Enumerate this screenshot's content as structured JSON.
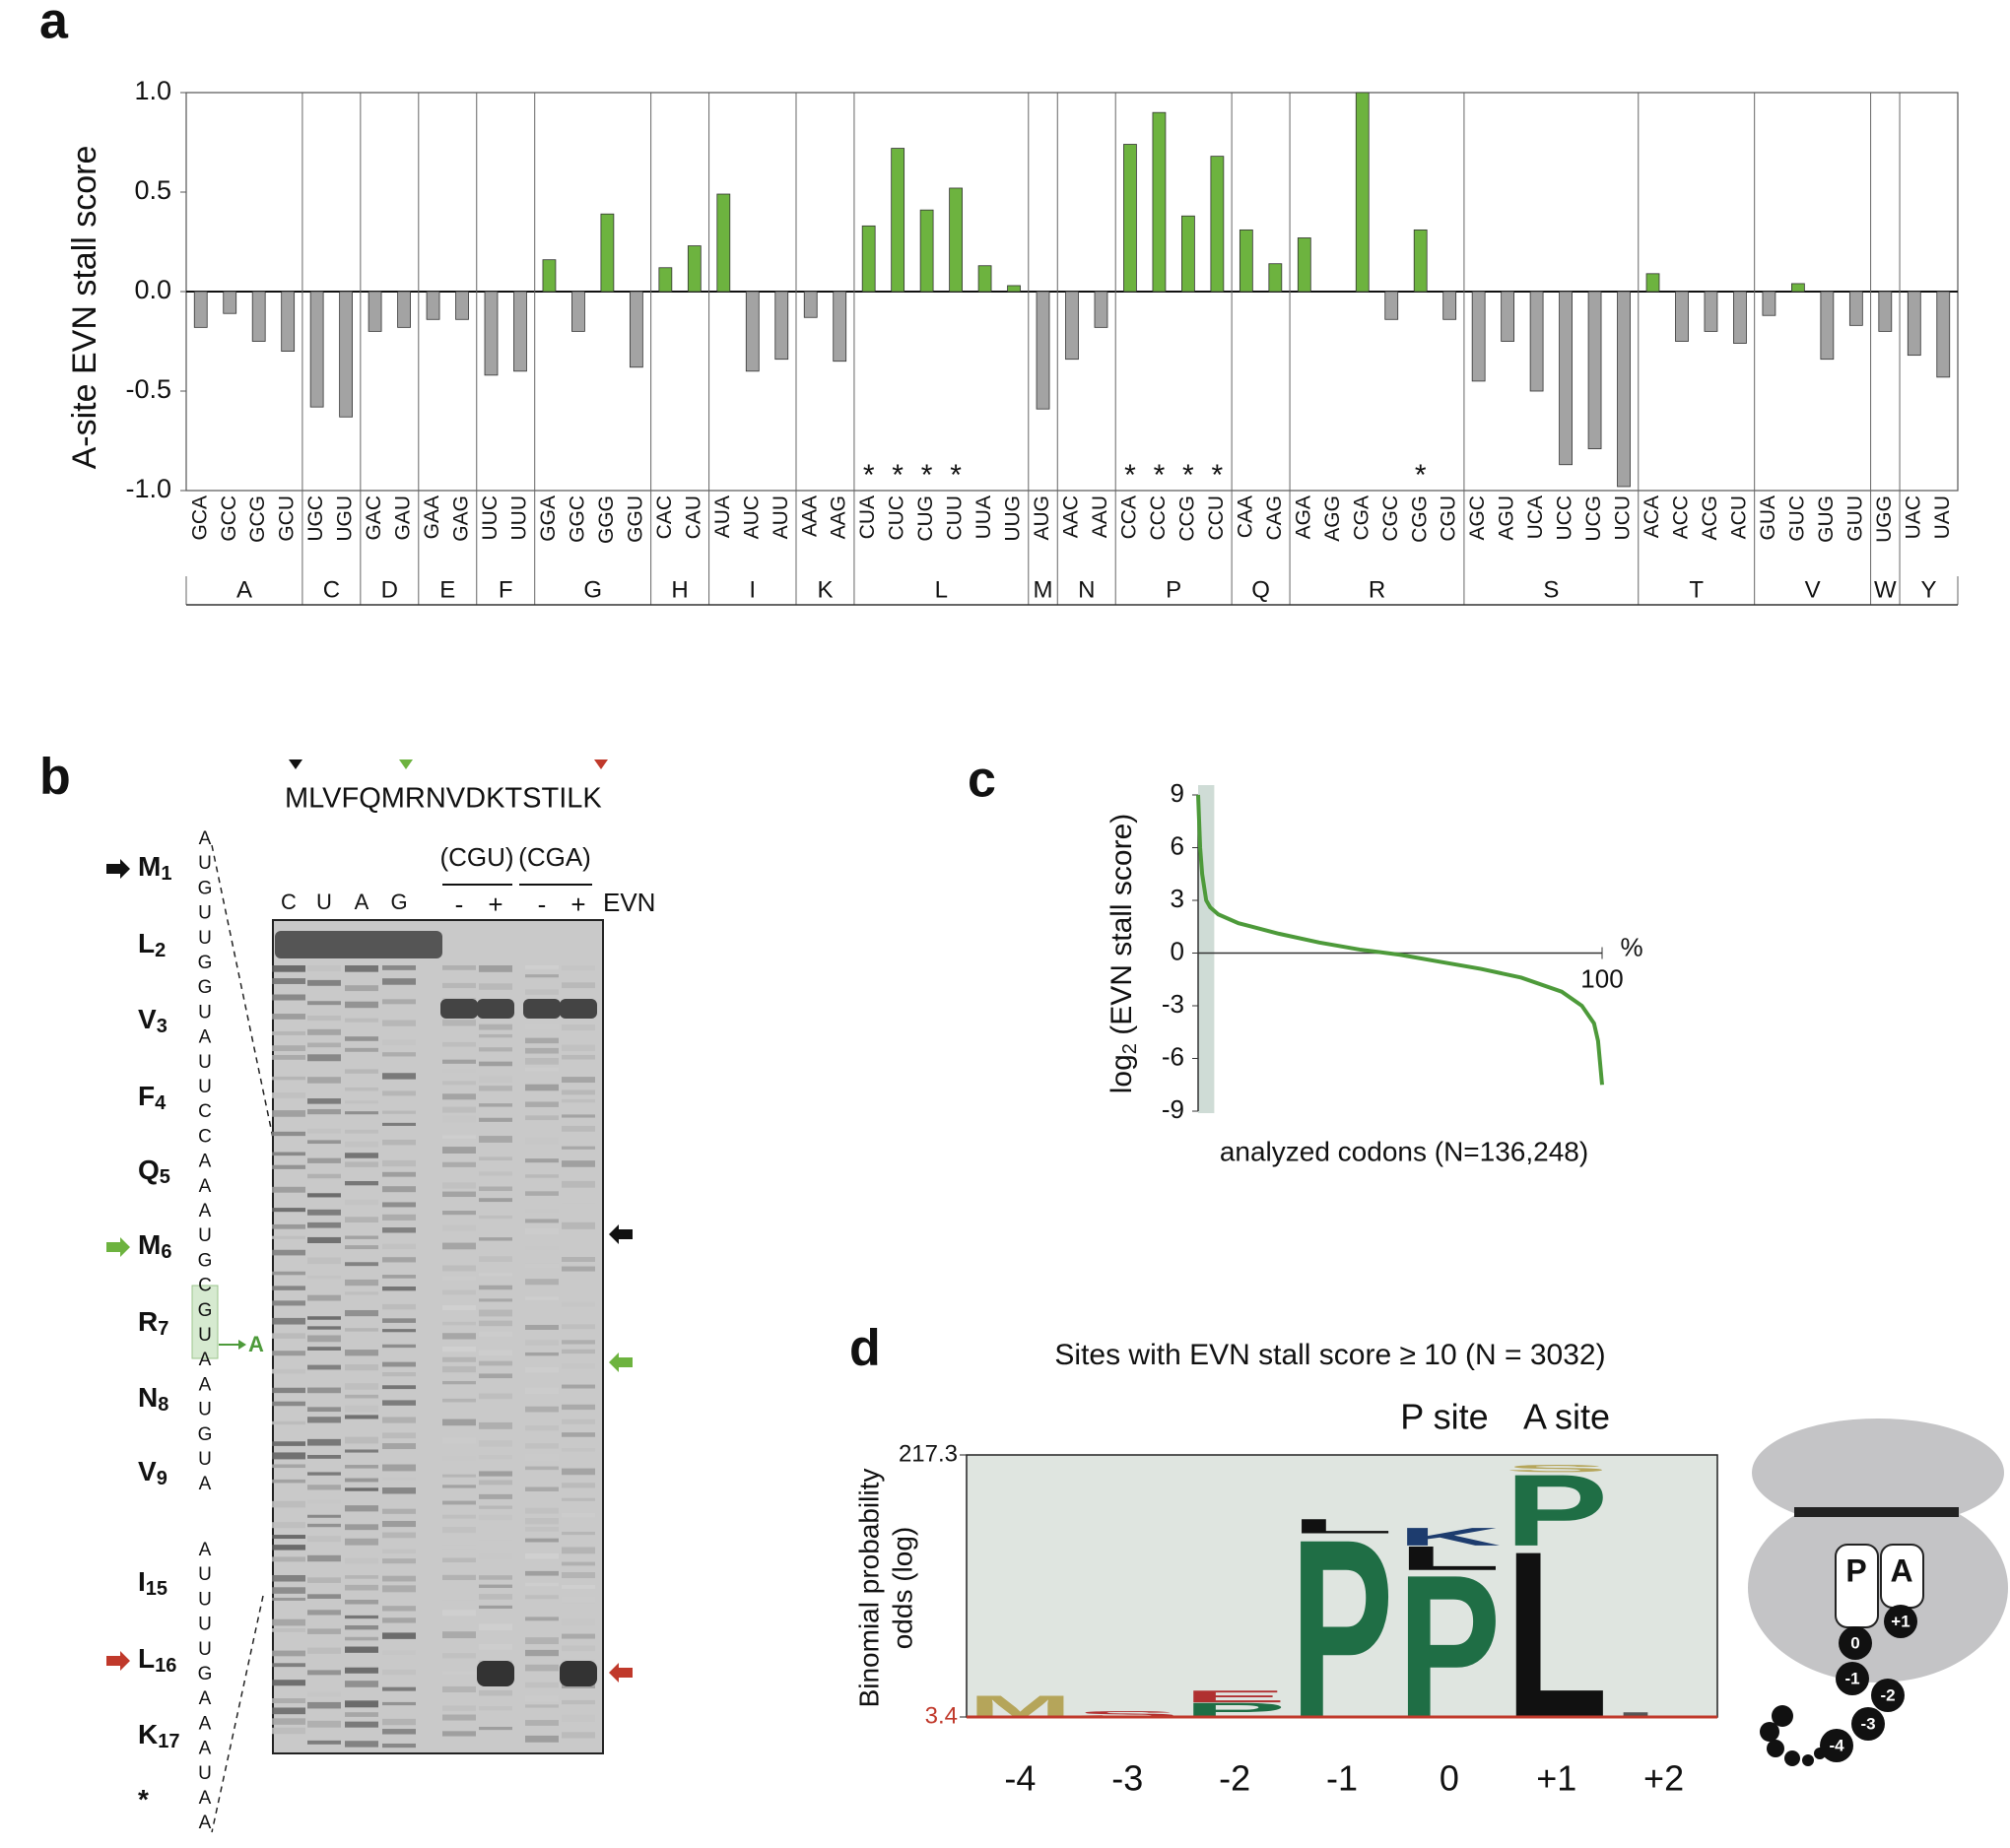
{
  "panel_labels": [
    "a",
    "b",
    "c",
    "d"
  ],
  "chart_data": [
    {
      "type": "bar",
      "ylabel": "A-site EVN stall score",
      "categories": [
        "GCA",
        "GCC",
        "GCG",
        "GCU",
        "UGC",
        "UGU",
        "GAC",
        "GAU",
        "GAA",
        "GAG",
        "UUC",
        "UUU",
        "GGA",
        "GGC",
        "GGG",
        "GGU",
        "CAC",
        "CAU",
        "AUA",
        "AUC",
        "AUU",
        "AAA",
        "AAG",
        "CUA",
        "CUC",
        "CUG",
        "CUU",
        "UUA",
        "UUG",
        "AUG",
        "AAC",
        "AAU",
        "CCA",
        "CCC",
        "CCG",
        "CCU",
        "CAA",
        "CAG",
        "AGA",
        "AGG",
        "CGA",
        "CGC",
        "CGG",
        "CGU",
        "AGC",
        "AGU",
        "UCA",
        "UCC",
        "UCG",
        "UCU",
        "ACA",
        "ACC",
        "ACG",
        "ACU",
        "GUA",
        "GUC",
        "GUG",
        "GUU",
        "UGG",
        "UAC",
        "UAU"
      ],
      "amino_acids": [
        "A",
        "A",
        "A",
        "A",
        "C",
        "C",
        "D",
        "D",
        "E",
        "E",
        "F",
        "F",
        "G",
        "G",
        "G",
        "G",
        "H",
        "H",
        "I",
        "I",
        "I",
        "K",
        "K",
        "L",
        "L",
        "L",
        "L",
        "L",
        "L",
        "M",
        "N",
        "N",
        "P",
        "P",
        "P",
        "P",
        "Q",
        "Q",
        "R",
        "R",
        "R",
        "R",
        "R",
        "R",
        "S",
        "S",
        "S",
        "S",
        "S",
        "S",
        "T",
        "T",
        "T",
        "T",
        "V",
        "V",
        "V",
        "V",
        "W",
        "Y",
        "Y"
      ],
      "values": [
        -0.18,
        -0.11,
        -0.25,
        -0.3,
        -0.58,
        -0.63,
        -0.2,
        -0.18,
        -0.14,
        -0.14,
        -0.42,
        -0.4,
        0.16,
        -0.2,
        0.39,
        -0.38,
        0.12,
        0.23,
        0.49,
        -0.4,
        -0.34,
        -0.13,
        -0.35,
        0.33,
        0.72,
        0.41,
        0.52,
        0.13,
        0.03,
        -0.59,
        -0.34,
        -0.18,
        0.74,
        0.9,
        0.38,
        0.68,
        0.31,
        0.14,
        0.27,
        0,
        1.0,
        -0.14,
        0.31,
        -0.14,
        -0.45,
        -0.25,
        -0.5,
        -0.87,
        -0.79,
        -0.98,
        0.09,
        -0.25,
        -0.2,
        -0.26,
        -0.12,
        0.04,
        -0.34,
        -0.17,
        -0.2,
        -0.32,
        -0.43
      ],
      "stars": [
        null,
        null,
        null,
        null,
        null,
        null,
        null,
        null,
        null,
        null,
        null,
        null,
        null,
        null,
        null,
        null,
        null,
        null,
        null,
        null,
        null,
        null,
        null,
        "*",
        "*",
        "*",
        "*",
        null,
        null,
        null,
        null,
        null,
        "*",
        "*",
        "*",
        "*",
        null,
        null,
        null,
        null,
        null,
        null,
        "*",
        null,
        null,
        null,
        null,
        null,
        null,
        null,
        null,
        null,
        null,
        null,
        null,
        null,
        null,
        null,
        null,
        null,
        null
      ],
      "positive_color": "#6db33f",
      "negative_color": "#a3a3a3",
      "ylim": [
        -1,
        1
      ],
      "yticks": [
        {
          "value": -1,
          "label": "-1.0"
        },
        {
          "value": -0.5,
          "label": "-0.5"
        },
        {
          "value": 0,
          "label": "0.0"
        },
        {
          "value": 0.5,
          "label": "0.5"
        },
        {
          "value": 1,
          "label": "1.0"
        }
      ]
    },
    {
      "type": "line",
      "ylabel": {
        "main": "log",
        "sub": "2",
        "rest": " (EVN stall score)"
      },
      "xlabel": "analyzed codons (N=136,248)",
      "xunit": "%",
      "x": [
        0,
        0.5,
        1,
        2,
        3,
        5,
        10,
        20,
        30,
        40,
        50,
        60,
        70,
        80,
        90,
        95,
        98,
        99,
        100
      ],
      "values": [
        9,
        6,
        4.5,
        3,
        2.6,
        2.2,
        1.7,
        1.1,
        0.6,
        0.2,
        -0.1,
        -0.5,
        -0.9,
        -1.4,
        -2.2,
        -3,
        -4,
        -5,
        -7.5
      ],
      "color": "#4d9a3a",
      "highlight_xlim": [
        0,
        4
      ],
      "highlight_color": "#cfdcd6",
      "xlim": [
        0,
        100
      ],
      "xticks": [
        100
      ],
      "ylim": [
        -9,
        9
      ],
      "yticks": [
        -9,
        -6,
        -3,
        0,
        3,
        6,
        9
      ]
    }
  ],
  "gel": {
    "peptide": "MLVFQMRNVDKTSTILK",
    "residues": [
      {
        "aa": "M",
        "n": 1
      },
      {
        "aa": "L",
        "n": 2
      },
      {
        "aa": "V",
        "n": 3
      },
      {
        "aa": "F",
        "n": 4
      },
      {
        "aa": "Q",
        "n": 5
      },
      {
        "aa": "M",
        "n": 6
      },
      {
        "aa": "R",
        "n": 7
      },
      {
        "aa": "N",
        "n": 8
      },
      {
        "aa": "V",
        "n": 9
      },
      {
        "aa": "I",
        "n": 15
      },
      {
        "aa": "L",
        "n": 16
      },
      {
        "aa": "K",
        "n": 17
      },
      {
        "aa": "*",
        "n": null
      }
    ],
    "nucleotides_top": [
      "A",
      "U",
      "G",
      "U",
      "U",
      "G",
      "G",
      "U",
      "A",
      "U",
      "U",
      "C",
      "C",
      "A",
      "A",
      "A",
      "U",
      "G",
      "C",
      "G",
      "U",
      "A",
      "A",
      "U",
      "G",
      "U",
      "A"
    ],
    "nucleotides_bottom": [
      "A",
      "U",
      "U",
      "U",
      "U",
      "G",
      "A",
      "A",
      "A",
      "U",
      "A",
      "A"
    ],
    "mutation": "A",
    "lanes": [
      "C",
      "U",
      "A",
      "G"
    ],
    "constructs": [
      "(CGU)",
      "(CGA)"
    ],
    "treatments": [
      "-",
      "+",
      "-",
      "+"
    ],
    "drug": "EVN"
  },
  "logo": {
    "title": "Sites with EVN stall score ≥ 10 (N = 3032)",
    "site_labels": [
      "P site",
      "A site"
    ],
    "ylabel": [
      "Binomial probability",
      "odds (log)"
    ],
    "ylim": [
      3.4,
      217.3
    ],
    "yticks": [
      3.4,
      217.3
    ],
    "baseline_color": "#c0392b",
    "background": "#dfe5e0",
    "positions": [
      {
        "label": "-4",
        "letters": [
          {
            "text": "M",
            "color": "#b5a55a",
            "height": 18
          }
        ]
      },
      {
        "label": "-3",
        "letters": [
          {
            "text": "S",
            "color": "#b03030",
            "height": 5
          }
        ]
      },
      {
        "label": "-2",
        "letters": [
          {
            "text": "P",
            "color": "#1f6e45",
            "height": 12
          },
          {
            "text": "E",
            "color": "#b03030",
            "height": 10
          }
        ]
      },
      {
        "label": "-1",
        "letters": [
          {
            "text": "P",
            "color": "#1f6e45",
            "height": 150
          },
          {
            "text": "L",
            "color": "#111111",
            "height": 12
          }
        ]
      },
      {
        "label": "0",
        "letters": [
          {
            "text": "P",
            "color": "#1f6e45",
            "height": 120
          },
          {
            "text": "L",
            "color": "#111111",
            "height": 20
          },
          {
            "text": "K",
            "color": "#1d3c6e",
            "height": 15
          }
        ]
      },
      {
        "label": "+1",
        "letters": [
          {
            "text": "L",
            "color": "#111111",
            "height": 140
          },
          {
            "text": "P",
            "color": "#1f6e45",
            "height": 60
          },
          {
            "text": "S",
            "color": "#b5a55a",
            "height": 6
          }
        ]
      },
      {
        "label": "+2",
        "letters": [
          {
            "text": "L",
            "color": "#555555",
            "height": 4
          }
        ]
      }
    ]
  },
  "ribosome": {
    "sites": [
      "P",
      "A"
    ],
    "residues": [
      "+1",
      "0",
      "-1",
      "-2",
      "-3",
      "-4"
    ]
  }
}
